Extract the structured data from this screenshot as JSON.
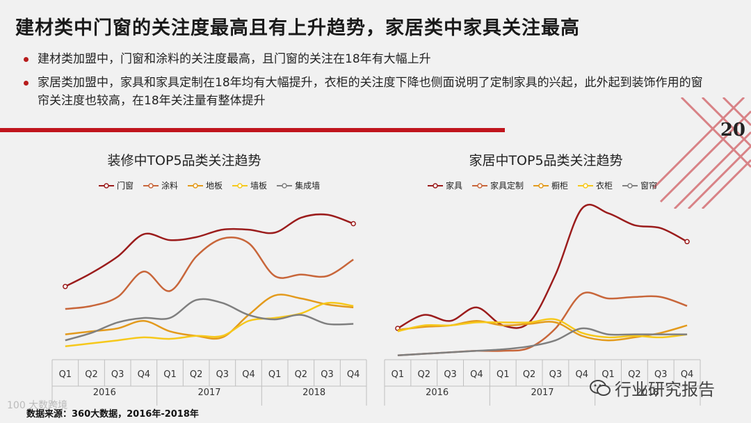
{
  "title": "建材类中门窗的关注度最高且有上升趋势，家居类中家具关注最高",
  "bullets": [
    "建材类加盟中，门窗和涂料的关注度最高，且门窗的关注在18年有大幅上升",
    "家居类加盟中，家具和家具定制在18年均有大幅提升，衣柜的关注度下降也侧面说明了定制家具的兴起，此外起到装饰作用的窗帘关注度也较高，在18年关注量有整体提升"
  ],
  "page_number": "20",
  "footer": "数据来源：360大数据，2016年-2018年",
  "watermark_left": "100 大数跨境",
  "watermark_right": "行业研究报告",
  "colors": {
    "accent": "#c0151d",
    "s1": "#9b1c1c",
    "s2": "#c8663a",
    "s3": "#e39a1c",
    "s4": "#f6c81b",
    "s5": "#7f7f7f"
  },
  "chart_data": [
    {
      "type": "line",
      "title": "装修中TOP5品类关注趋势",
      "categories": [
        "Q1",
        "Q2",
        "Q3",
        "Q4",
        "Q1",
        "Q2",
        "Q3",
        "Q4",
        "Q1",
        "Q2",
        "Q3",
        "Q4"
      ],
      "years": [
        "2016",
        "2017",
        "2018"
      ],
      "ylim": [
        0,
        100
      ],
      "series": [
        {
          "name": "门窗",
          "values": [
            48,
            57,
            68,
            83,
            79,
            81,
            86,
            86,
            84,
            94,
            96,
            90
          ]
        },
        {
          "name": "涂料",
          "values": [
            33,
            35,
            41,
            58,
            45,
            68,
            80,
            77,
            55,
            56,
            55,
            66
          ]
        },
        {
          "name": "地板",
          "values": [
            16,
            18,
            20,
            25,
            18,
            15,
            14,
            29,
            42,
            40,
            36,
            34
          ]
        },
        {
          "name": "墙板",
          "values": [
            8,
            10,
            12,
            14,
            13,
            15,
            15,
            25,
            27,
            30,
            37,
            35
          ]
        },
        {
          "name": "集成墙",
          "values": [
            12,
            17,
            24,
            27,
            27,
            39,
            37,
            29,
            26,
            29,
            23,
            23
          ]
        }
      ]
    },
    {
      "type": "line",
      "title": "家居中TOP5品类关注趋势",
      "categories": [
        "Q1",
        "Q2",
        "Q3",
        "Q4",
        "Q1",
        "Q2",
        "Q3",
        "Q4",
        "Q1",
        "Q2",
        "Q3",
        "Q4"
      ],
      "years": [
        "2016",
        "2017",
        "2018"
      ],
      "ylim": [
        0,
        100
      ],
      "series": [
        {
          "name": "家具",
          "values": [
            20,
            29,
            25,
            34,
            22,
            24,
            56,
            100,
            97,
            89,
            87,
            78
          ]
        },
        {
          "name": "家具定制",
          "values": [
            2,
            3,
            4,
            5,
            5,
            7,
            20,
            43,
            40,
            41,
            41,
            35
          ]
        },
        {
          "name": "橱柜",
          "values": [
            19,
            21,
            22,
            25,
            22,
            23,
            24,
            15,
            12,
            14,
            17,
            22
          ]
        },
        {
          "name": "衣柜",
          "values": [
            18,
            22,
            22,
            24,
            24,
            24,
            26,
            17,
            14,
            15,
            14,
            16
          ]
        },
        {
          "name": "窗帘",
          "values": [
            2,
            3,
            4,
            5,
            6,
            8,
            12,
            20,
            16,
            16,
            16,
            16
          ]
        }
      ]
    }
  ]
}
